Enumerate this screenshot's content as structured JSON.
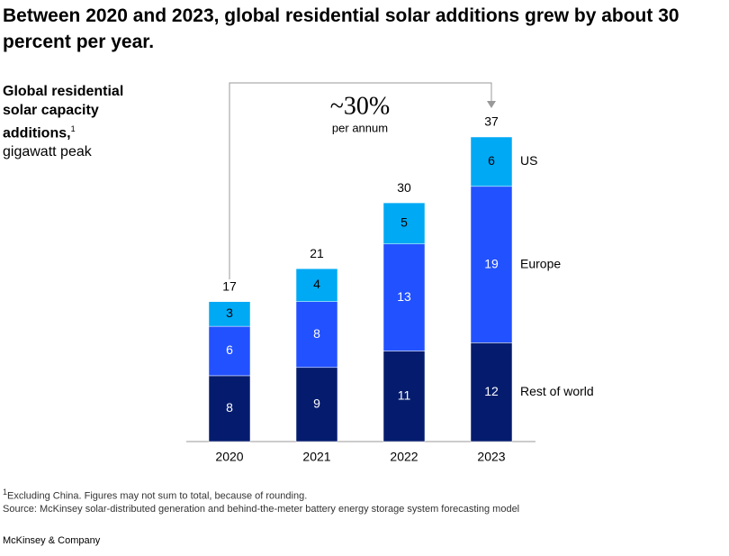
{
  "chart_data": {
    "type": "stacked-bar",
    "title": "Between 2020 and 2023, global residential solar additions grew by about 30 percent per year.",
    "subtitle": "Global residential solar capacity additions,",
    "note_marker": "1",
    "unit": "gigawatt peak",
    "annotation": "~30%",
    "annotation_sub": "per annum",
    "categories": [
      "2020",
      "2021",
      "2022",
      "2023"
    ],
    "series": [
      {
        "name": "Rest of world",
        "color": "#051c6e",
        "values": [
          8,
          9,
          11,
          12
        ]
      },
      {
        "name": "Europe",
        "color": "#2251ff",
        "values": [
          6,
          8,
          13,
          19
        ]
      },
      {
        "name": "US",
        "color": "#00a9f4",
        "values": [
          3,
          4,
          5,
          6
        ]
      }
    ],
    "totals": [
      17,
      21,
      30,
      37
    ],
    "footnote": "Excluding China. Figures may not sum to total, because of rounding.",
    "source": "Source: McKinsey solar-distributed generation and behind-the-meter battery energy storage system forecasting model",
    "brand": "McKinsey & Company"
  }
}
